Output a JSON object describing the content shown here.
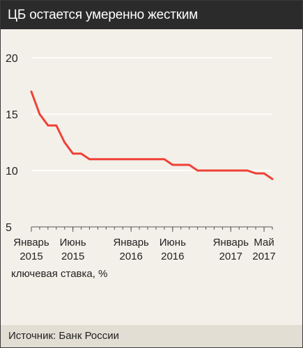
{
  "title": "ЦБ остается умеренно жестким",
  "source": "Источник: Банк России",
  "colors": {
    "line": "#ef4136",
    "title_bg": "#2b2b2b",
    "panel_bg": "#f3f0e9",
    "source_bg": "#e3ded3",
    "grid": "#ffffff"
  },
  "chart_data": {
    "type": "line",
    "title": "",
    "xlabel": "",
    "ylabel": "ключевая ставка, %",
    "ylim": [
      5,
      20
    ],
    "yticks": [
      5,
      10,
      15,
      20
    ],
    "xlim": [
      "2015-01",
      "2017-06"
    ],
    "grid": true,
    "x_ticks": [
      {
        "x": "2015-01",
        "line1": "Январь",
        "line2": "2015"
      },
      {
        "x": "2015-06",
        "line1": "Июнь",
        "line2": "2015"
      },
      {
        "x": "2016-01",
        "line1": "Январь",
        "line2": "2016"
      },
      {
        "x": "2016-06",
        "line1": "Июнь",
        "line2": "2016"
      },
      {
        "x": "2017-01",
        "line1": "Январь",
        "line2": "2017"
      },
      {
        "x": "2017-05",
        "line1": "Май",
        "line2": "2017"
      }
    ],
    "series": [
      {
        "name": "",
        "color": "#ef4136",
        "points": [
          {
            "x": "2015-01-01",
            "y": 17.0
          },
          {
            "x": "2015-02-01",
            "y": 15.0
          },
          {
            "x": "2015-03-01",
            "y": 14.0
          },
          {
            "x": "2015-04-01",
            "y": 14.0
          },
          {
            "x": "2015-05-01",
            "y": 12.5
          },
          {
            "x": "2015-06-01",
            "y": 11.5
          },
          {
            "x": "2015-07-01",
            "y": 11.5
          },
          {
            "x": "2015-08-01",
            "y": 11.0
          },
          {
            "x": "2015-09-01",
            "y": 11.0
          },
          {
            "x": "2015-10-01",
            "y": 11.0
          },
          {
            "x": "2015-11-01",
            "y": 11.0
          },
          {
            "x": "2015-12-01",
            "y": 11.0
          },
          {
            "x": "2016-01-01",
            "y": 11.0
          },
          {
            "x": "2016-02-01",
            "y": 11.0
          },
          {
            "x": "2016-03-01",
            "y": 11.0
          },
          {
            "x": "2016-04-01",
            "y": 11.0
          },
          {
            "x": "2016-05-01",
            "y": 11.0
          },
          {
            "x": "2016-06-01",
            "y": 10.5
          },
          {
            "x": "2016-07-01",
            "y": 10.5
          },
          {
            "x": "2016-08-01",
            "y": 10.5
          },
          {
            "x": "2016-09-01",
            "y": 10.0
          },
          {
            "x": "2016-10-01",
            "y": 10.0
          },
          {
            "x": "2016-11-01",
            "y": 10.0
          },
          {
            "x": "2016-12-01",
            "y": 10.0
          },
          {
            "x": "2017-01-01",
            "y": 10.0
          },
          {
            "x": "2017-02-01",
            "y": 10.0
          },
          {
            "x": "2017-03-01",
            "y": 10.0
          },
          {
            "x": "2017-04-01",
            "y": 9.75
          },
          {
            "x": "2017-05-01",
            "y": 9.75
          },
          {
            "x": "2017-06-01",
            "y": 9.25
          }
        ]
      }
    ]
  }
}
